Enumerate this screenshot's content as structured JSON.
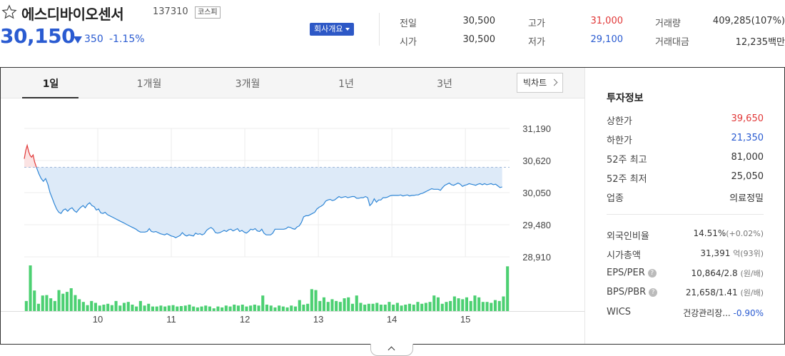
{
  "stock": {
    "name": "에스디바이오센서",
    "code": "137310",
    "market": "코스피",
    "price": "30,150",
    "change_value": "350",
    "change_percent": "-1.15%",
    "overview_label": "회사개요"
  },
  "quote": {
    "prev_close_label": "전일",
    "prev_close": "30,500",
    "open_label": "시가",
    "open": "30,500",
    "high_label": "고가",
    "high": "31,000",
    "low_label": "저가",
    "low": "29,100",
    "volume_label": "거래량",
    "volume": "409,285(107%)",
    "amount_label": "거래대금",
    "amount": "12,235백만"
  },
  "tabs": [
    "1일",
    "1개월",
    "3개월",
    "1년",
    "3년"
  ],
  "active_tab": "1일",
  "big_chart_label": "빅차트",
  "colors": {
    "up": "#e13838",
    "down": "#2a5bd1",
    "line": "#2f86d6",
    "fill": "#ddeaf8",
    "volume": "#4cd072"
  },
  "chart_data": {
    "type": "line",
    "title": "",
    "xlabel": "",
    "ylabel": "",
    "ylim": [
      28910,
      31190
    ],
    "yticks": [
      31190,
      30620,
      30050,
      29480,
      28910
    ],
    "ytick_labels": [
      "31,190",
      "30,620",
      "30,050",
      "29,480",
      "28,910"
    ],
    "xticks": [
      10,
      11,
      12,
      13,
      14,
      15
    ],
    "xtick_labels": [
      "10",
      "11",
      "12",
      "13",
      "14",
      "15"
    ],
    "xlim": [
      9.0,
      15.6
    ],
    "reference": 30500,
    "grid": true,
    "price_series": [
      [
        9.0,
        30650
      ],
      [
        9.02,
        30800
      ],
      [
        9.04,
        30890
      ],
      [
        9.06,
        30780
      ],
      [
        9.08,
        30710
      ],
      [
        9.1,
        30680
      ],
      [
        9.12,
        30720
      ],
      [
        9.14,
        30600
      ],
      [
        9.16,
        30520
      ],
      [
        9.18,
        30450
      ],
      [
        9.2,
        30380
      ],
      [
        9.23,
        30300
      ],
      [
        9.26,
        30250
      ],
      [
        9.29,
        30300
      ],
      [
        9.32,
        30200
      ],
      [
        9.35,
        30050
      ],
      [
        9.38,
        29950
      ],
      [
        9.41,
        29850
      ],
      [
        9.44,
        29760
      ],
      [
        9.47,
        29700
      ],
      [
        9.5,
        29680
      ],
      [
        9.53,
        29740
      ],
      [
        9.56,
        29760
      ],
      [
        9.59,
        29720
      ],
      [
        9.62,
        29760
      ],
      [
        9.65,
        29780
      ],
      [
        9.68,
        29730
      ],
      [
        9.71,
        29700
      ],
      [
        9.74,
        29750
      ],
      [
        9.77,
        29790
      ],
      [
        9.8,
        29820
      ],
      [
        9.83,
        29780
      ],
      [
        9.86,
        29840
      ],
      [
        9.89,
        29870
      ],
      [
        9.92,
        29820
      ],
      [
        9.95,
        29800
      ],
      [
        9.98,
        29740
      ],
      [
        10.01,
        29760
      ],
      [
        10.04,
        29690
      ],
      [
        10.07,
        29680
      ],
      [
        10.1,
        29700
      ],
      [
        10.13,
        29660
      ],
      [
        10.16,
        29640
      ],
      [
        10.19,
        29620
      ],
      [
        10.22,
        29600
      ],
      [
        10.25,
        29580
      ],
      [
        10.28,
        29560
      ],
      [
        10.31,
        29540
      ],
      [
        10.34,
        29520
      ],
      [
        10.37,
        29500
      ],
      [
        10.4,
        29480
      ],
      [
        10.43,
        29460
      ],
      [
        10.46,
        29440
      ],
      [
        10.49,
        29420
      ],
      [
        10.52,
        29400
      ],
      [
        10.55,
        29370
      ],
      [
        10.58,
        29350
      ],
      [
        10.61,
        29350
      ],
      [
        10.64,
        29350
      ],
      [
        10.67,
        29360
      ],
      [
        10.7,
        29410
      ],
      [
        10.73,
        29360
      ],
      [
        10.76,
        29350
      ],
      [
        10.79,
        29360
      ],
      [
        10.82,
        29340
      ],
      [
        10.85,
        29320
      ],
      [
        10.88,
        29310
      ],
      [
        10.91,
        29300
      ],
      [
        10.94,
        29320
      ],
      [
        10.97,
        29300
      ],
      [
        11.0,
        29280
      ],
      [
        11.03,
        29270
      ],
      [
        11.06,
        29250
      ],
      [
        11.09,
        29270
      ],
      [
        11.12,
        29290
      ],
      [
        11.15,
        29340
      ],
      [
        11.18,
        29300
      ],
      [
        11.21,
        29280
      ],
      [
        11.24,
        29300
      ],
      [
        11.27,
        29290
      ],
      [
        11.3,
        29280
      ],
      [
        11.33,
        29330
      ],
      [
        11.36,
        29310
      ],
      [
        11.39,
        29320
      ],
      [
        11.42,
        29300
      ],
      [
        11.45,
        29320
      ],
      [
        11.48,
        29380
      ],
      [
        11.51,
        29410
      ],
      [
        11.54,
        29430
      ],
      [
        11.57,
        29400
      ],
      [
        11.6,
        29340
      ],
      [
        11.63,
        29330
      ],
      [
        11.66,
        29340
      ],
      [
        11.69,
        29360
      ],
      [
        11.72,
        29380
      ],
      [
        11.75,
        29360
      ],
      [
        11.78,
        29390
      ],
      [
        11.81,
        29400
      ],
      [
        11.84,
        29370
      ],
      [
        11.87,
        29390
      ],
      [
        11.9,
        29410
      ],
      [
        11.93,
        29360
      ],
      [
        11.96,
        29380
      ],
      [
        11.99,
        29350
      ],
      [
        12.02,
        29330
      ],
      [
        12.05,
        29360
      ],
      [
        12.08,
        29400
      ],
      [
        12.11,
        29390
      ],
      [
        12.14,
        29410
      ],
      [
        12.17,
        29370
      ],
      [
        12.2,
        29360
      ],
      [
        12.23,
        29400
      ],
      [
        12.26,
        29330
      ],
      [
        12.29,
        29300
      ],
      [
        12.32,
        29300
      ],
      [
        12.35,
        29300
      ],
      [
        12.38,
        29330
      ],
      [
        12.41,
        29400
      ],
      [
        12.44,
        29400
      ],
      [
        12.47,
        29400
      ],
      [
        12.5,
        29400
      ],
      [
        12.53,
        29400
      ],
      [
        12.56,
        29410
      ],
      [
        12.59,
        29440
      ],
      [
        12.62,
        29430
      ],
      [
        12.65,
        29410
      ],
      [
        12.68,
        29400
      ],
      [
        12.71,
        29440
      ],
      [
        12.74,
        29460
      ],
      [
        12.77,
        29520
      ],
      [
        12.8,
        29620
      ],
      [
        12.83,
        29640
      ],
      [
        12.86,
        29640
      ],
      [
        12.89,
        29660
      ],
      [
        12.92,
        29680
      ],
      [
        12.95,
        29700
      ],
      [
        12.98,
        29760
      ],
      [
        13.01,
        29790
      ],
      [
        13.04,
        29810
      ],
      [
        13.07,
        29840
      ],
      [
        13.1,
        29900
      ],
      [
        13.13,
        29920
      ],
      [
        13.16,
        29930
      ],
      [
        13.19,
        29910
      ],
      [
        13.22,
        29920
      ],
      [
        13.25,
        29950
      ],
      [
        13.28,
        29980
      ],
      [
        13.31,
        29960
      ],
      [
        13.34,
        29970
      ],
      [
        13.37,
        29980
      ],
      [
        13.4,
        29960
      ],
      [
        13.43,
        29970
      ],
      [
        13.46,
        29980
      ],
      [
        13.49,
        29980
      ],
      [
        13.52,
        29950
      ],
      [
        13.55,
        29950
      ],
      [
        13.58,
        29960
      ],
      [
        13.61,
        29960
      ],
      [
        13.64,
        29980
      ],
      [
        13.67,
        29960
      ],
      [
        13.7,
        29820
      ],
      [
        13.73,
        29860
      ],
      [
        13.76,
        29940
      ],
      [
        13.79,
        29880
      ],
      [
        13.82,
        29920
      ],
      [
        13.85,
        29920
      ],
      [
        13.88,
        29960
      ],
      [
        13.91,
        29960
      ],
      [
        13.94,
        29970
      ],
      [
        13.97,
        29990
      ],
      [
        14.0,
        30000
      ],
      [
        14.03,
        30000
      ],
      [
        14.06,
        30000
      ],
      [
        14.09,
        30000
      ],
      [
        14.12,
        30010
      ],
      [
        14.15,
        29990
      ],
      [
        14.18,
        30000
      ],
      [
        14.21,
        30010
      ],
      [
        14.24,
        29990
      ],
      [
        14.27,
        30000
      ],
      [
        14.3,
        30000
      ],
      [
        14.33,
        30010
      ],
      [
        14.36,
        30010
      ],
      [
        14.39,
        30030
      ],
      [
        14.42,
        30040
      ],
      [
        14.45,
        30060
      ],
      [
        14.48,
        30080
      ],
      [
        14.51,
        30100
      ],
      [
        14.54,
        30120
      ],
      [
        14.57,
        30110
      ],
      [
        14.6,
        30110
      ],
      [
        14.63,
        30110
      ],
      [
        14.66,
        30090
      ],
      [
        14.69,
        30140
      ],
      [
        14.72,
        30180
      ],
      [
        14.75,
        30200
      ],
      [
        14.78,
        30220
      ],
      [
        14.81,
        30190
      ],
      [
        14.84,
        30180
      ],
      [
        14.87,
        30200
      ],
      [
        14.9,
        30220
      ],
      [
        14.93,
        30200
      ],
      [
        14.96,
        30160
      ],
      [
        14.99,
        30180
      ],
      [
        15.02,
        30190
      ],
      [
        15.05,
        30210
      ],
      [
        15.08,
        30200
      ],
      [
        15.11,
        30190
      ],
      [
        15.14,
        30180
      ],
      [
        15.17,
        30200
      ],
      [
        15.2,
        30210
      ],
      [
        15.23,
        30190
      ],
      [
        15.26,
        30210
      ],
      [
        15.29,
        30190
      ],
      [
        15.32,
        30200
      ],
      [
        15.35,
        30210
      ],
      [
        15.38,
        30190
      ],
      [
        15.41,
        30200
      ],
      [
        15.44,
        30170
      ],
      [
        15.47,
        30140
      ],
      [
        15.5,
        30150
      ]
    ],
    "volume_series": [
      0.22,
      1.0,
      0.45,
      0.16,
      0.34,
      0.35,
      0.28,
      0.22,
      0.46,
      0.38,
      0.42,
      0.5,
      0.35,
      0.26,
      0.2,
      0.13,
      0.22,
      0.18,
      0.12,
      0.14,
      0.16,
      0.13,
      0.22,
      0.12,
      0.18,
      0.2,
      0.14,
      0.1,
      0.22,
      0.12,
      0.16,
      0.1,
      0.1,
      0.12,
      0.1,
      0.12,
      0.13,
      0.1,
      0.11,
      0.12,
      0.14,
      0.1,
      0.08,
      0.1,
      0.12,
      0.1,
      0.06,
      0.1,
      0.08,
      0.12,
      0.1,
      0.14,
      0.12,
      0.14,
      0.1,
      0.12,
      0.14,
      0.12,
      0.34,
      0.14,
      0.12,
      0.08,
      0.12,
      0.1,
      0.08,
      0.12,
      0.1,
      0.24,
      0.14,
      0.16,
      0.48,
      0.46,
      0.22,
      0.3,
      0.2,
      0.26,
      0.22,
      0.2,
      0.28,
      0.3,
      0.16,
      0.34,
      0.18,
      0.14,
      0.16,
      0.16,
      0.18,
      0.14,
      0.14,
      0.2,
      0.14,
      0.18,
      0.12,
      0.14,
      0.16,
      0.14,
      0.2,
      0.16,
      0.18,
      0.2,
      0.34,
      0.3,
      0.16,
      0.2,
      0.22,
      0.32,
      0.28,
      0.26,
      0.3,
      0.22,
      0.34,
      0.3,
      0.2,
      0.2,
      0.18,
      0.24,
      0.22,
      0.32,
      0.98
    ]
  },
  "invest": {
    "title": "투자정보",
    "upper_limit_label": "상한가",
    "upper_limit": "39,650",
    "lower_limit_label": "하한가",
    "lower_limit": "21,350",
    "high52_label": "52주 최고",
    "high52": "81,000",
    "low52_label": "52주 최저",
    "low52": "25,050",
    "industry_label": "업종",
    "industry": "의료정밀",
    "foreign_label": "외국인비율",
    "foreign": "14.51%",
    "foreign_change": "(+0.02%)",
    "mcap_label": "시가총액",
    "mcap": "31,391",
    "mcap_unit": "억(93위)",
    "eps_per_label": "EPS/PER",
    "eps_per": "10,864/2.8",
    "eps_per_unit": "(원/배)",
    "bps_pbr_label": "BPS/PBR",
    "bps_pbr": "21,658/1.41",
    "bps_pbr_unit": "(원/배)",
    "wics_label": "WICS",
    "wics": "건강관리장...",
    "wics_change": "-0.90%",
    "help_mark": "?"
  }
}
